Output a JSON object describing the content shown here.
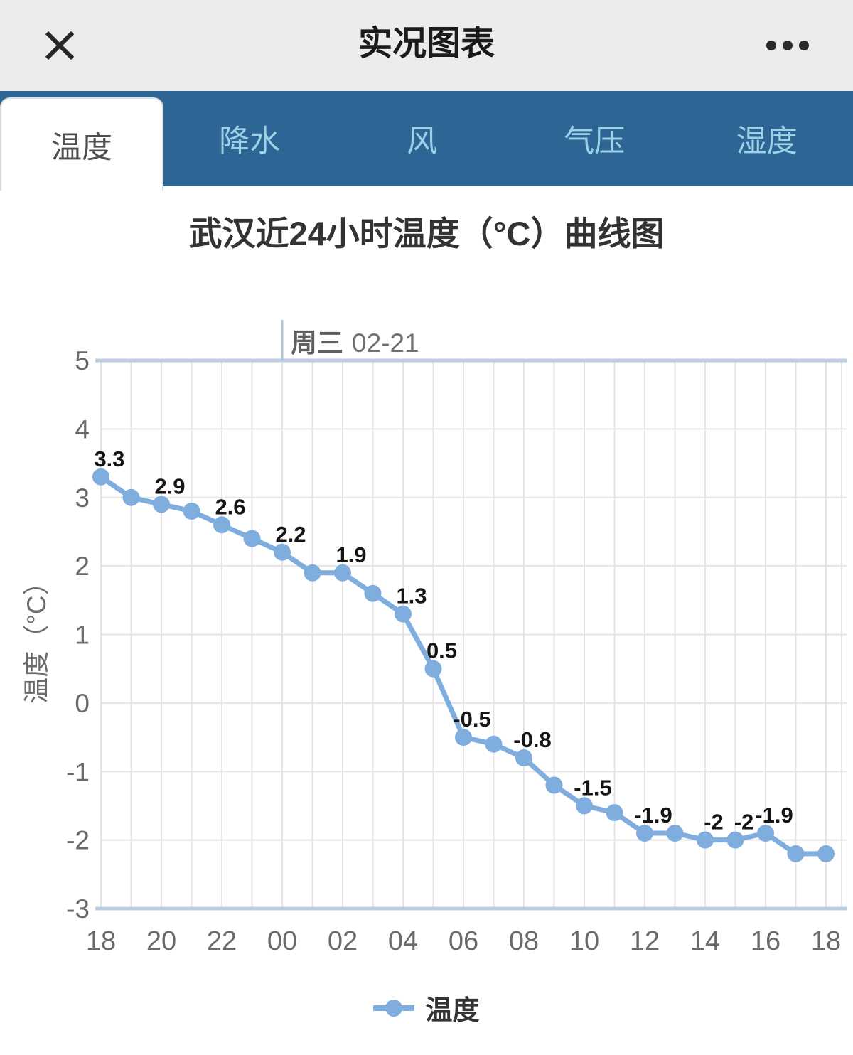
{
  "header": {
    "title": "实况图表"
  },
  "tabs": {
    "items": [
      {
        "label": "温度",
        "active": true
      },
      {
        "label": "降水",
        "active": false
      },
      {
        "label": "风",
        "active": false
      },
      {
        "label": "气压",
        "active": false
      },
      {
        "label": "湿度",
        "active": false
      }
    ]
  },
  "chart_title": "武汉近24小时温度（°C）曲线图",
  "chart_data": {
    "type": "line",
    "title": "武汉近24小时温度（°C）曲线图",
    "xlabel": "",
    "ylabel": "温度（°C）",
    "x": [
      "18",
      "19",
      "20",
      "21",
      "22",
      "23",
      "00",
      "01",
      "02",
      "03",
      "04",
      "05",
      "06",
      "07",
      "08",
      "09",
      "10",
      "11",
      "12",
      "13",
      "14",
      "15",
      "16",
      "17",
      "18"
    ],
    "x_tick_step": 2,
    "ylim": [
      -3,
      5
    ],
    "y_ticks": [
      5,
      4,
      3,
      2,
      1,
      0,
      -1,
      -2,
      -3
    ],
    "grid": true,
    "series": [
      {
        "name": "温度",
        "color": "#7fadde",
        "values": [
          3.3,
          3.0,
          2.9,
          2.8,
          2.6,
          2.4,
          2.2,
          1.9,
          1.9,
          1.6,
          1.3,
          0.5,
          -0.5,
          -0.6,
          -0.8,
          -1.2,
          -1.5,
          -1.6,
          -1.9,
          -1.9,
          -2,
          -2,
          -1.9,
          -2.2,
          -2.2
        ]
      }
    ],
    "point_labels": [
      "3.3",
      null,
      "2.9",
      null,
      "2.6",
      null,
      "2.2",
      null,
      "1.9",
      null,
      "1.3",
      "0.5",
      "-0.5",
      null,
      "-0.8",
      null,
      "-1.5",
      null,
      "-1.9",
      null,
      "-2",
      "-2",
      "-1.9",
      null,
      null
    ],
    "annotation": {
      "day": "周三",
      "date": "02-21",
      "x_index": 6
    },
    "legend": {
      "position": "bottom",
      "items": [
        {
          "label": "温度",
          "color": "#7fadde"
        }
      ]
    }
  },
  "colors": {
    "header_bg": "#ececec",
    "header_text": "#1b1b1b",
    "icon_dark": "#262626",
    "tabbar_bg": "#2d6595",
    "tab_text_inactive": "#9ed1e6",
    "tab_text_active": "#4f4f4f",
    "series_blue": "#7fadde",
    "boundary_line": "#bccee0",
    "grid_line": "#e5e5e5",
    "tick_text": "#6a6a6a",
    "point_label_text": "#151515",
    "annotation_line": "#b0c3d6",
    "annotation_text": "#5f5f5f",
    "annotation_date_text": "#6f6f6f",
    "title_text": "#333333",
    "legend_text": "#333333"
  }
}
